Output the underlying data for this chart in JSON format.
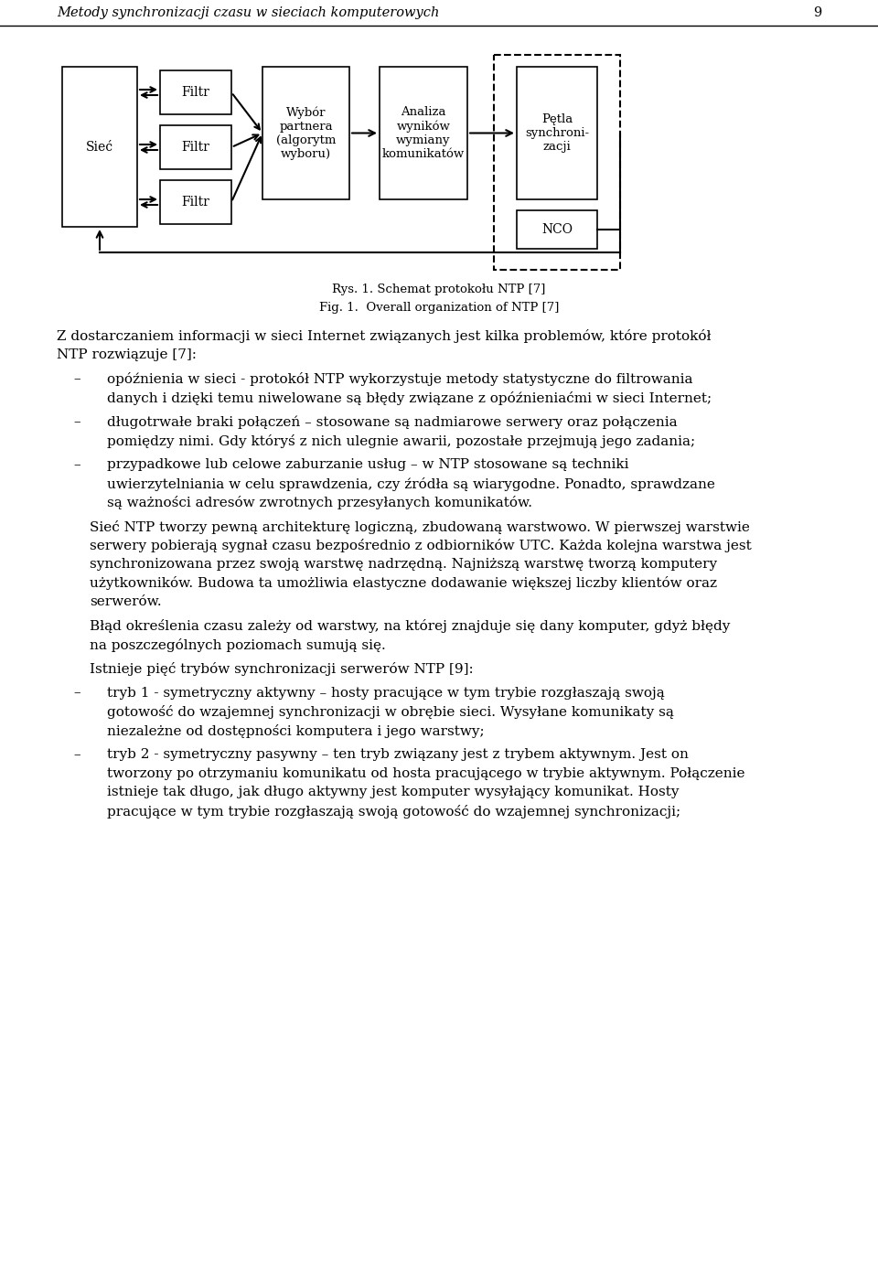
{
  "header_text": "Metody synchronizacji czasu w sieciach komputerowych",
  "header_number": "9",
  "bg_color": "#ffffff",
  "text_color": "#000000",
  "caption1": "Rys. 1. Schemat protokołu NTP [7]",
  "caption2": "Fig. 1.  Overall organization of NTP [7]",
  "body_text": [
    {
      "type": "para",
      "indent": false,
      "text": "Z dostarczaniem informacji w sieci Internet związanych jest kilka problemów, które protokół NTP rozwiązuje [7]:"
    },
    {
      "type": "bullet",
      "text": "opóźnienia w sieci - protokół NTP wykorzystuje metody statystyczne do filtrowania danych i dzięki temu niwelowane są błędy związane z opóźnieniaćmi w sieci Internet;"
    },
    {
      "type": "bullet",
      "text": "długotrwałe braki połączeń – stosowane są nadmiarowe serwery oraz połączenia pomiędzy nimi. Gdy któryś z nich ulegnie awarii, pozostałe przejmują jego zadania;"
    },
    {
      "type": "bullet",
      "text": "przypadkowe lub celowe zaburzanie usług – w NTP stosowane są techniki uwierzytelniania w celu sprawdzenia, czy źródła są wiarygodne. Ponadto, sprawdzane są ważności adresów zwrotnych przesyłanych komunikatów."
    },
    {
      "type": "para",
      "indent": true,
      "text": "Sieć NTP tworzy pewną architekturę logiczną, zbudowaną warstwowo. W pierwszej warstwie serwery pobierają sygnał czasu bezpośrednio z odbiorników UTC. Każda kolejna warstwa jest synchronizowana przez swoją warstwę nadrzędną. Najniższą warstwę tworzą komputery użytkowników. Budowa ta umożliwia elastyczne dodawanie większej liczby klientów oraz serwerów."
    },
    {
      "type": "para",
      "indent": true,
      "text": "Błąd określenia czasu zależy od warstwy, na której znajduje się dany komputer, gdyż błędy na poszczególnych poziomach sumują się."
    },
    {
      "type": "para",
      "indent": true,
      "text": "Istnieje pięć trybów synchronizacji serwerów NTP [9]:"
    },
    {
      "type": "bullet",
      "text": "tryb 1 - symetryczny aktywny – hosty pracujące w tym trybie rozgłaszają swoją gotowość do wzajemnej synchronizacji w obrębie sieci. Wysyłane komunikaty są niezależne od dostępności komputera i jego warstwy;"
    },
    {
      "type": "bullet",
      "text": "tryb 2 - symetryczny pasywny – ten tryb związany jest z trybem aktywnym. Jest on tworzony po otrzymaniu komunikatu od hosta pracującego w trybie aktywnym. Połączenie istnieje tak długo, jak długo aktywny jest komputer wysyłający komunikat. Hosty pracujące w tym trybie rozgłaszają swoją gotowość do wzajemnej synchronizacji;"
    }
  ]
}
